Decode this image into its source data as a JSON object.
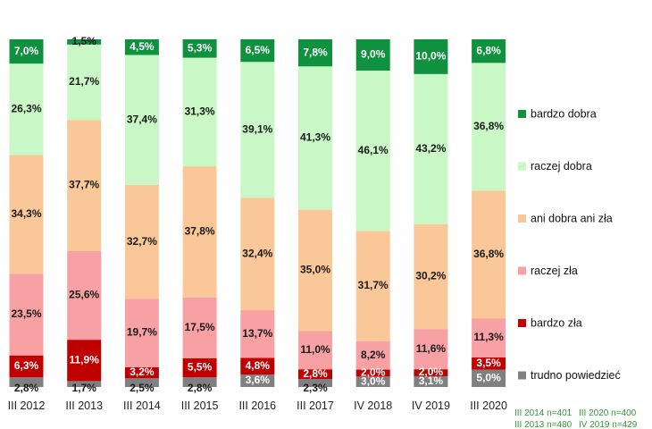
{
  "chart_data": {
    "type": "bar",
    "stacked": true,
    "percent_axis": true,
    "categories": [
      "III 2012",
      "III 2013",
      "III 2014",
      "III 2015",
      "III 2016",
      "III 2017",
      "IV 2018",
      "IV 2019",
      "III 2020"
    ],
    "series": [
      {
        "name": "trudno powiedzieć",
        "color": "#808080",
        "text_color": "#ffffff",
        "values": [
          2.8,
          1.7,
          2.5,
          2.8,
          3.6,
          2.3,
          3.0,
          3.1,
          5.0
        ],
        "labels": [
          "2,8%",
          "1,7%",
          "2,5%",
          "2,8%",
          "3,6%",
          "2,3%",
          "3,0%",
          "3,1%",
          "5,0%"
        ]
      },
      {
        "name": "bardzo zła",
        "color": "#c00000",
        "text_color": "#ffffff",
        "values": [
          6.3,
          11.9,
          3.2,
          5.5,
          4.8,
          2.8,
          2.0,
          2.0,
          3.5
        ],
        "labels": [
          "6,3%",
          "11,9%",
          "3,2%",
          "5,5%",
          "4,8%",
          "2,8%",
          "2,0%",
          "2,0%",
          "3,5%"
        ]
      },
      {
        "name": "raczej zła",
        "color": "#f7a1a4",
        "text_color": "#1a1a1a",
        "values": [
          23.5,
          25.6,
          19.7,
          17.5,
          13.7,
          11.0,
          8.2,
          11.6,
          11.3
        ],
        "labels": [
          "23,5%",
          "25,6%",
          "19,7%",
          "17,5%",
          "13,7%",
          "11,0%",
          "8,2%",
          "11,6%",
          "11,3%"
        ]
      },
      {
        "name": "ani dobra ani zła",
        "color": "#fac898",
        "text_color": "#1a1a1a",
        "values": [
          34.3,
          37.7,
          32.7,
          37.8,
          32.4,
          35.0,
          31.7,
          30.2,
          36.8
        ],
        "labels": [
          "34,3%",
          "37,7%",
          "32,7%",
          "37,8%",
          "32,4%",
          "35,0%",
          "31,7%",
          "30,2%",
          "36,8%"
        ]
      },
      {
        "name": "raczej dobra",
        "color": "#c9f7c6",
        "text_color": "#1a1a1a",
        "values": [
          26.3,
          21.7,
          37.4,
          31.3,
          39.1,
          41.3,
          46.1,
          43.2,
          36.8
        ],
        "labels": [
          "26,3%",
          "21,7%",
          "37,4%",
          "31,3%",
          "39,1%",
          "41,3%",
          "46,1%",
          "43,2%",
          "36,8%"
        ]
      },
      {
        "name": "bardzo dobra",
        "color": "#0f9140",
        "text_color": "#ffffff",
        "values": [
          7.0,
          1.5,
          4.5,
          5.3,
          6.5,
          7.8,
          9.0,
          10.0,
          6.8
        ],
        "labels": [
          "7,0%",
          "1,5%",
          "4,5%",
          "5,3%",
          "6,5%",
          "7,8%",
          "9,0%",
          "10,0%",
          "6,8%"
        ]
      }
    ],
    "legend": {
      "placement": "right",
      "order": [
        "bardzo dobra",
        "raczej dobra",
        "ani dobra ani zła",
        "raczej zła",
        "bardzo zła",
        "trudno powiedzieć"
      ]
    },
    "notes": [
      {
        "text": "III 2014 n=401",
        "color": "#339933"
      },
      {
        "text": "III 2020 n=400",
        "color": "#339933"
      },
      {
        "text": "III 2013 n=480",
        "color": "#339933"
      },
      {
        "text": "IV 2019 n=429",
        "color": "#339933"
      }
    ],
    "grid": false
  }
}
